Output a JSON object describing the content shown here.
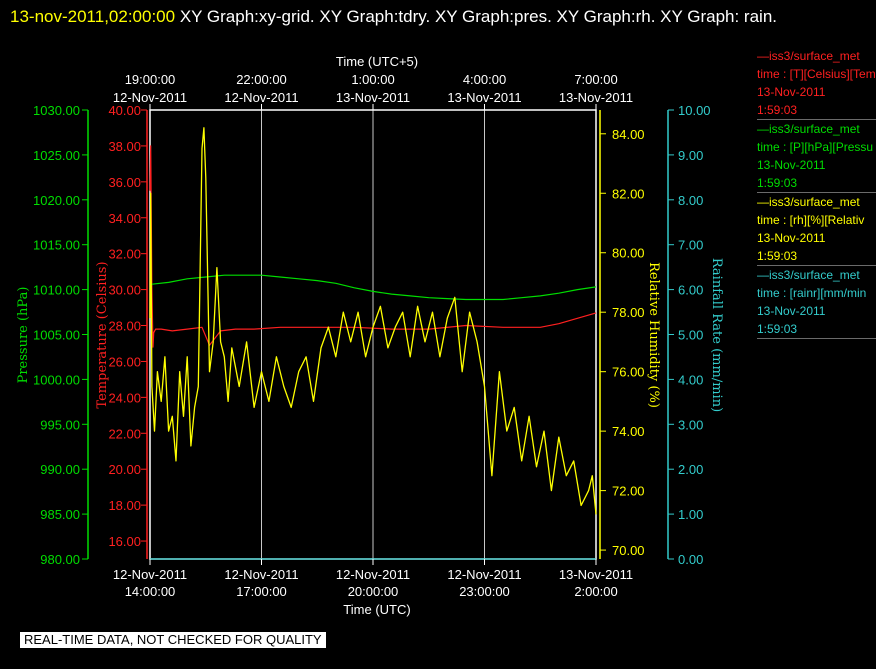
{
  "title": {
    "timestamp": "13-nov-2011,02:00:00",
    "rest": "  XY Graph:xy-grid.  XY Graph:tdry.  XY Graph:pres.  XY Graph:rh.  XY Graph: rain."
  },
  "footer": "REAL-TIME DATA, NOT CHECKED FOR QUALITY",
  "colors": {
    "pressure": "#00dd00",
    "temperature": "#ff2020",
    "humidity": "#ffff00",
    "rain": "#33cccc",
    "grid": "#c8c8c8",
    "frame": "#ffffff"
  },
  "legend": [
    {
      "lines": [
        "—iss3/surface_met",
        "time : [T][Celsius][Tem",
        "13-Nov-2011",
        "1:59:03"
      ],
      "color": "#ff2020"
    },
    {
      "lines": [
        "—iss3/surface_met",
        "time : [P][hPa][Pressu",
        "13-Nov-2011",
        "1:59:03"
      ],
      "color": "#00dd00"
    },
    {
      "lines": [
        "—iss3/surface_met",
        "time : [rh][%][Relativ",
        "13-Nov-2011",
        "1:59:03"
      ],
      "color": "#ffff00"
    },
    {
      "lines": [
        "—iss3/surface_met",
        "time : [rainr][mm/min",
        "13-Nov-2011",
        "1:59:03"
      ],
      "color": "#33cccc"
    }
  ],
  "chart_data": {
    "type": "line",
    "top_axis": {
      "label": "Time (UTC+5)",
      "ticks": [
        {
          "time": "19:00:00",
          "date": "12-Nov-2011"
        },
        {
          "time": "22:00:00",
          "date": "12-Nov-2011"
        },
        {
          "time": "1:00:00",
          "date": "13-Nov-2011"
        },
        {
          "time": "4:00:00",
          "date": "13-Nov-2011"
        },
        {
          "time": "7:00:00",
          "date": "13-Nov-2011"
        }
      ]
    },
    "bottom_axis": {
      "label": "Time (UTC)",
      "ticks": [
        {
          "date": "12-Nov-2011",
          "time": "14:00:00"
        },
        {
          "date": "12-Nov-2011",
          "time": "17:00:00"
        },
        {
          "date": "12-Nov-2011",
          "time": "20:00:00"
        },
        {
          "date": "12-Nov-2011",
          "time": "23:00:00"
        },
        {
          "date": "13-Nov-2011",
          "time": "2:00:00"
        }
      ]
    },
    "x_range_hours_utc": [
      14,
      26
    ],
    "grid": true,
    "axes": {
      "pressure": {
        "label": "Pressure (hPa)",
        "ylim": [
          980,
          1030
        ],
        "ticks": [
          "1030.00",
          "1025.00",
          "1020.00",
          "1015.00",
          "1010.00",
          "1005.00",
          "1000.00",
          "995.00",
          "990.00",
          "985.00",
          "980.00"
        ]
      },
      "temperature": {
        "label": "Temperature (Celsius)",
        "ylim": [
          15,
          40
        ],
        "ticks": [
          "40.00",
          "38.00",
          "36.00",
          "34.00",
          "32.00",
          "30.00",
          "28.00",
          "26.00",
          "24.00",
          "22.00",
          "20.00",
          "18.00",
          "16.00"
        ]
      },
      "humidity": {
        "label": "Relative Humidity (%)",
        "ylim": [
          69.7,
          84.8
        ],
        "ticks": [
          "84.00",
          "82.00",
          "80.00",
          "78.00",
          "76.00",
          "74.00",
          "72.00",
          "70.00"
        ]
      },
      "rain": {
        "label": "Rainfall Rate (mm/min)",
        "ylim": [
          0,
          10
        ],
        "ticks": [
          "10.00",
          "9.00",
          "8.00",
          "7.00",
          "6.00",
          "5.00",
          "4.00",
          "3.00",
          "2.00",
          "1.00",
          "0.00"
        ]
      }
    },
    "series": [
      {
        "name": "iss3/surface_met time : [T][Celsius][Tem",
        "axis": "temperature",
        "x": [
          14.0,
          14.02,
          14.05,
          14.08,
          14.1,
          14.15,
          14.3,
          14.6,
          15.0,
          15.4,
          15.6,
          15.9,
          16.3,
          16.8,
          17.5,
          18.5,
          19.5,
          20.5,
          21.5,
          22.5,
          23.5,
          24.5,
          25.0,
          25.5,
          26.0
        ],
        "y": [
          35.5,
          38.0,
          30.0,
          26.8,
          27.6,
          27.8,
          27.8,
          27.7,
          27.8,
          27.9,
          26.9,
          27.7,
          27.8,
          27.8,
          27.9,
          27.9,
          27.9,
          27.8,
          27.8,
          28.0,
          27.9,
          27.9,
          28.1,
          28.4,
          28.7
        ]
      },
      {
        "name": "iss3/surface_met time : [P][hPa][Pressu",
        "axis": "pressure",
        "x": [
          14.0,
          14.05,
          14.5,
          15.0,
          15.5,
          16.0,
          16.5,
          17.0,
          17.5,
          18.0,
          18.5,
          19.0,
          19.5,
          20.0,
          20.5,
          21.0,
          21.5,
          22.0,
          22.5,
          23.0,
          23.5,
          24.0,
          24.5,
          25.0,
          25.5,
          26.0
        ],
        "y": [
          1010.2,
          1010.6,
          1010.8,
          1011.2,
          1011.4,
          1011.6,
          1011.6,
          1011.6,
          1011.4,
          1011.2,
          1011.0,
          1010.7,
          1010.2,
          1009.8,
          1009.5,
          1009.3,
          1009.1,
          1009.0,
          1008.9,
          1008.9,
          1008.9,
          1009.1,
          1009.3,
          1009.6,
          1010.0,
          1010.3
        ]
      },
      {
        "name": "iss3/surface_met time : [rh][%][Relativ",
        "axis": "humidity",
        "x": [
          14.0,
          14.02,
          14.05,
          14.12,
          14.2,
          14.3,
          14.4,
          14.5,
          14.6,
          14.7,
          14.8,
          14.9,
          15.0,
          15.1,
          15.2,
          15.3,
          15.4,
          15.45,
          15.5,
          15.6,
          15.7,
          15.8,
          15.9,
          16.0,
          16.1,
          16.2,
          16.4,
          16.6,
          16.8,
          17.0,
          17.2,
          17.4,
          17.6,
          17.8,
          18.0,
          18.2,
          18.4,
          18.6,
          18.8,
          19.0,
          19.2,
          19.4,
          19.6,
          19.8,
          20.0,
          20.2,
          20.4,
          20.6,
          20.8,
          21.0,
          21.2,
          21.4,
          21.6,
          21.8,
          22.0,
          22.2,
          22.4,
          22.6,
          22.8,
          23.0,
          23.2,
          23.4,
          23.6,
          23.8,
          24.0,
          24.2,
          24.4,
          24.6,
          24.8,
          25.0,
          25.2,
          25.4,
          25.6,
          25.8,
          25.9,
          26.0
        ],
        "y": [
          77.8,
          82.0,
          75.5,
          74.0,
          76.0,
          75.0,
          76.5,
          74.0,
          74.5,
          73.0,
          76.0,
          74.5,
          76.5,
          73.5,
          74.8,
          75.5,
          83.5,
          84.2,
          82.5,
          76.0,
          77.0,
          79.5,
          77.0,
          76.5,
          75.0,
          76.8,
          75.5,
          77.0,
          74.8,
          76.0,
          75.0,
          76.5,
          75.5,
          74.8,
          76.0,
          76.5,
          75.0,
          76.8,
          77.5,
          76.5,
          78.0,
          77.0,
          78.0,
          76.5,
          77.5,
          78.2,
          76.8,
          77.5,
          78.0,
          76.5,
          78.2,
          77.0,
          78.0,
          76.5,
          77.8,
          78.5,
          76.0,
          78.0,
          77.0,
          75.5,
          72.5,
          76.0,
          74.0,
          74.8,
          73.0,
          74.5,
          72.8,
          74.0,
          72.0,
          73.8,
          72.5,
          73.0,
          71.5,
          72.0,
          72.5,
          71.2
        ]
      },
      {
        "name": "iss3/surface_met time : [rainr][mm/min",
        "axis": "rain",
        "x": [
          14.0,
          26.0
        ],
        "y": [
          0.0,
          0.0
        ]
      }
    ]
  }
}
